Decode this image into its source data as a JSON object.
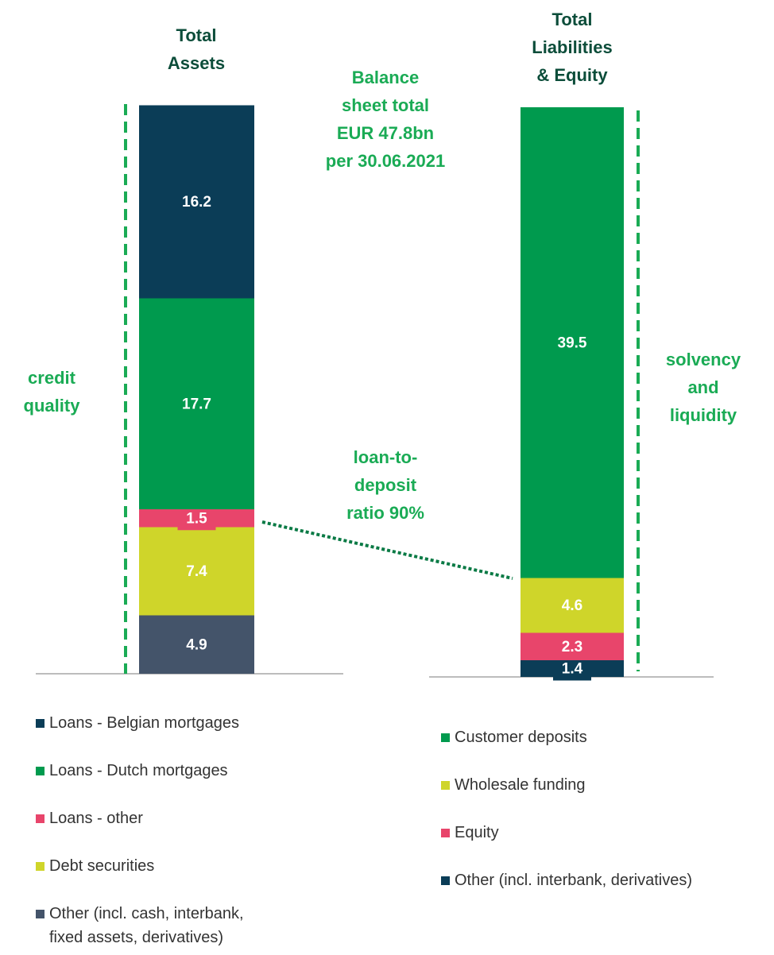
{
  "chart_data": [
    {
      "type": "stacked-bar",
      "title": "Total\nAssets",
      "categories": [
        null
      ],
      "series": [
        {
          "name": "Loans - Belgian mortgages",
          "color": "#0b3d57",
          "values": [
            16.2
          ]
        },
        {
          "name": "Loans - Dutch mortgages",
          "color": "#009a4e",
          "values": [
            17.7
          ]
        },
        {
          "name": "Loans - other",
          "color": "#e8456b",
          "values": [
            1.5
          ]
        },
        {
          "name": "Debt securities",
          "color": "#cfd52a",
          "values": [
            7.4
          ]
        },
        {
          "name": "Other (incl. cash, interbank, fixed assets, derivatives)",
          "color": "#44546a",
          "values": [
            4.9
          ]
        }
      ]
    },
    {
      "type": "stacked-bar",
      "title": "Total\nLiabilities\n& Equity",
      "categories": [
        null
      ],
      "series": [
        {
          "name": "Customer deposits",
          "color": "#009a4e",
          "values": [
            39.5
          ]
        },
        {
          "name": "Wholesale funding",
          "color": "#cfd52a",
          "values": [
            4.6
          ]
        },
        {
          "name": "Equity",
          "color": "#e8456b",
          "values": [
            2.3
          ]
        },
        {
          "name": "Other (incl. interbank, derivatives)",
          "color": "#0b3d57",
          "values": [
            1.4
          ]
        }
      ]
    }
  ],
  "annotations": [
    "Balance\nsheet total\nEUR 47.8bn\nper 30.06.2021",
    "loan-to-\ndeposit\nratio 90%",
    "credit\nquality",
    "solvency\nand\nliquidity"
  ]
}
